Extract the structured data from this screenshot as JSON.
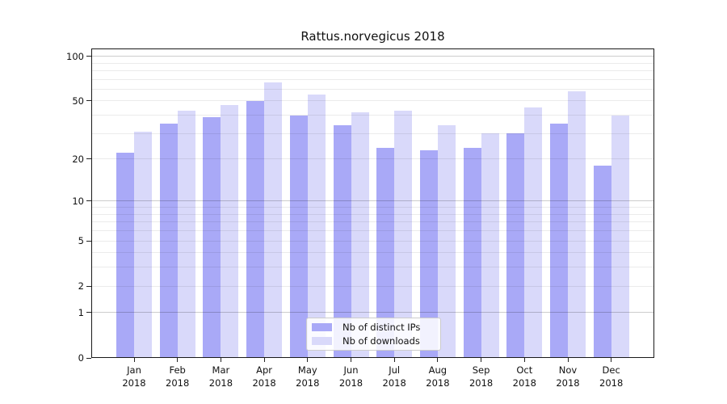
{
  "chart_data": {
    "type": "bar",
    "title": "Rattus.norvegicus 2018",
    "x_categories": [
      "Jan",
      "Feb",
      "Mar",
      "Apr",
      "May",
      "Jun",
      "Jul",
      "Aug",
      "Sep",
      "Oct",
      "Nov",
      "Dec"
    ],
    "x_year": "2018",
    "series": [
      {
        "name": "Nb of distinct IPs",
        "color": "#a9a9f7",
        "values": [
          22,
          35,
          39,
          50,
          40,
          34,
          24,
          23,
          24,
          30,
          35,
          18
        ]
      },
      {
        "name": "Nb of downloads",
        "color": "#d9d9fa",
        "values": [
          31,
          43,
          47,
          67,
          55,
          42,
          43,
          34,
          30,
          45,
          58,
          40
        ]
      }
    ],
    "y_scale": "log1p",
    "ylim": [
      0,
      113
    ],
    "y_ticks": [
      100,
      50,
      20,
      10,
      5,
      2,
      1,
      0
    ],
    "gridlines": {
      "major": [
        100,
        10,
        1
      ],
      "minor": [
        90,
        80,
        70,
        60,
        50,
        40,
        30,
        20,
        9,
        8,
        7,
        6,
        5,
        4,
        3,
        2
      ]
    },
    "grid": true,
    "legend_position": "lower center"
  }
}
